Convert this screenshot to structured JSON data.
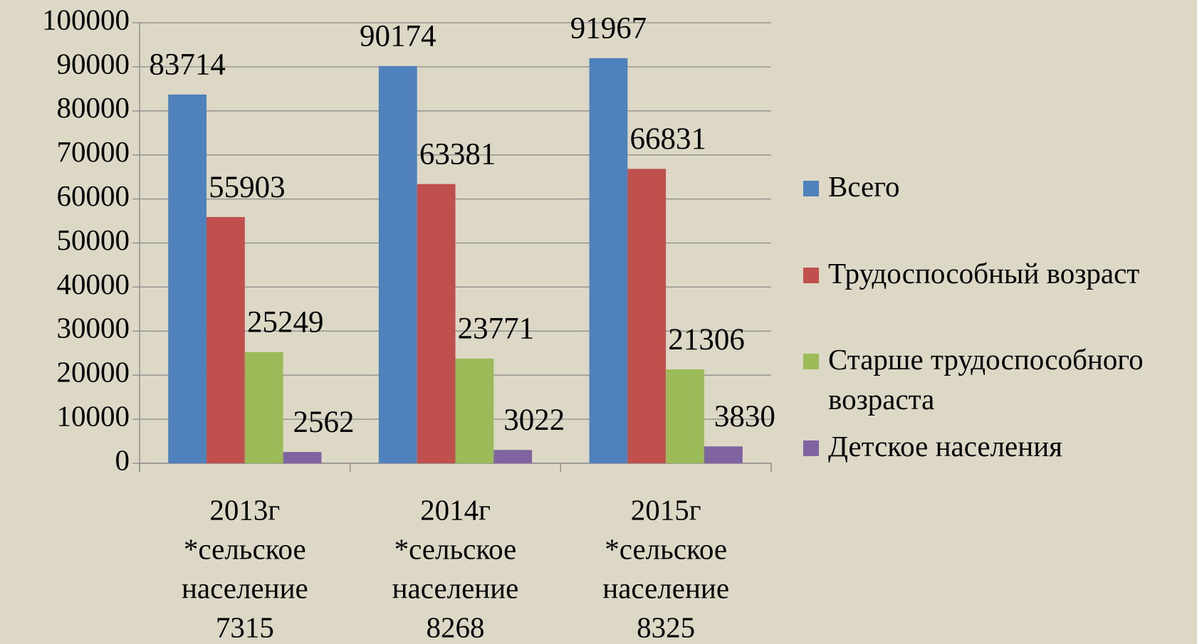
{
  "chart_data": {
    "type": "bar",
    "categories": [
      [
        "2013г",
        "*сельское",
        "население",
        "7315"
      ],
      [
        "2014г",
        "*сельское",
        "население",
        "8268"
      ],
      [
        "2015г",
        "*сельское",
        "население",
        "8325"
      ]
    ],
    "series": [
      {
        "name": "Всего",
        "color": "#4f81bd",
        "values": [
          83714,
          90174,
          91967
        ]
      },
      {
        "name": "Трудоспособный возраст",
        "color": "#c0504d",
        "values": [
          55903,
          63381,
          66831
        ]
      },
      {
        "name": "Старше трудоспособного возраста",
        "color": "#9bbb59",
        "values": [
          25249,
          23771,
          21306
        ]
      },
      {
        "name": "Детское населения",
        "color": "#8064a2",
        "values": [
          2562,
          3022,
          3830
        ]
      }
    ],
    "ylim": [
      0,
      100000
    ],
    "yticks": [
      0,
      10000,
      20000,
      30000,
      40000,
      50000,
      60000,
      70000,
      80000,
      90000,
      100000
    ],
    "grid": true,
    "legend": "right"
  }
}
